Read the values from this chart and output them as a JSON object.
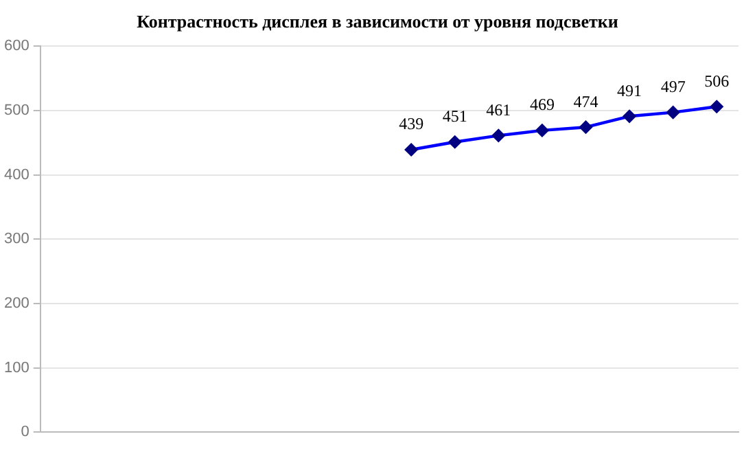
{
  "chart_data": {
    "type": "line",
    "title": "Контрастность дисплея в зависимости от уровня подсветки",
    "categories": [
      null,
      null,
      null,
      null,
      null,
      null,
      null,
      null,
      null,
      null,
      null,
      null,
      null,
      null,
      null,
      null
    ],
    "series": [
      {
        "color": "#0000ff",
        "values": [
          null,
          null,
          null,
          null,
          null,
          null,
          null,
          null,
          439,
          451,
          461,
          469,
          474,
          491,
          497,
          506
        ]
      }
    ],
    "ylim": [
      0,
      600
    ],
    "yticks": [
      0,
      100,
      200,
      300,
      400,
      500,
      600
    ],
    "grid": "y",
    "marker": "diamond",
    "data_labels": true,
    "legend": false
  }
}
